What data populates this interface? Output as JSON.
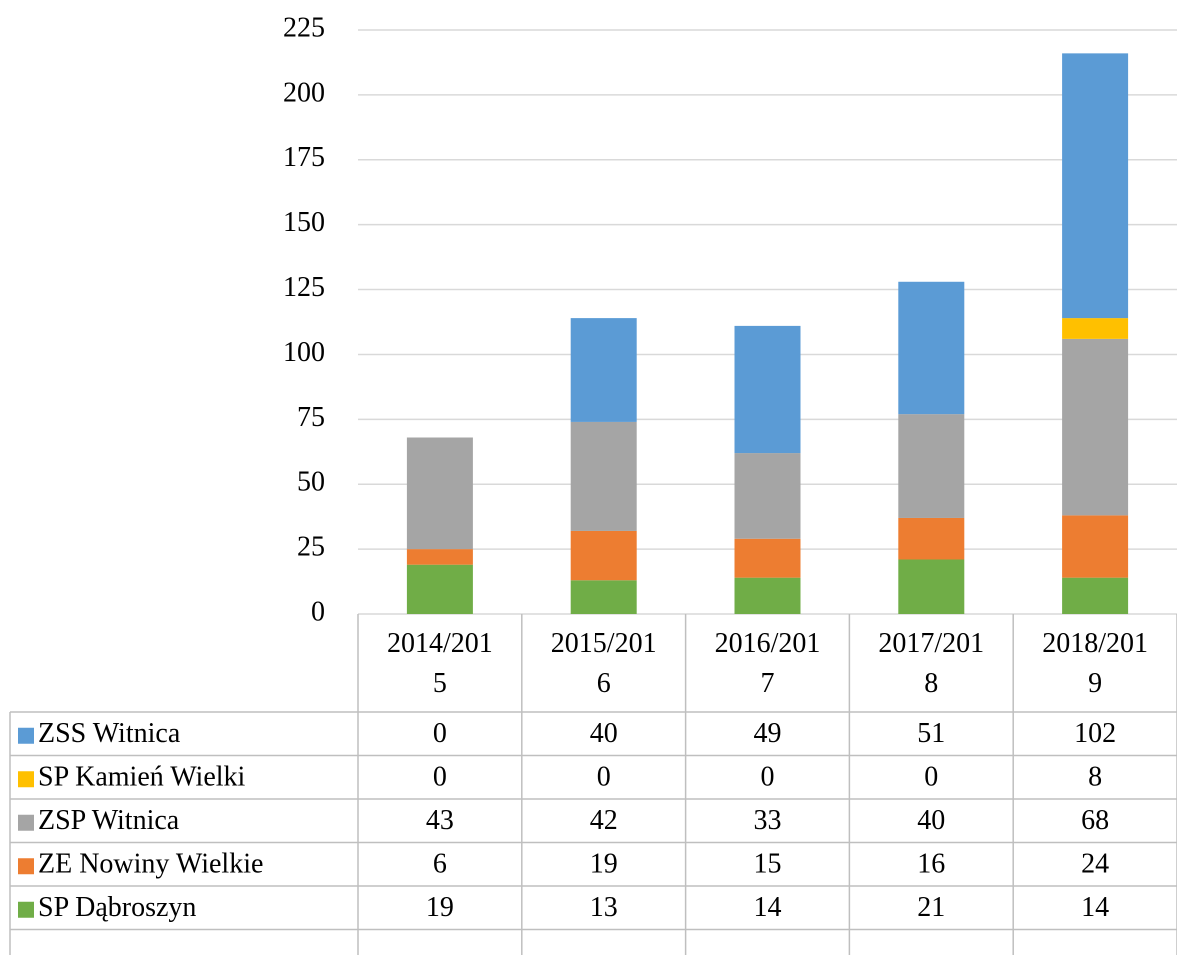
{
  "chart_data": {
    "type": "stacked-bar",
    "categories": [
      "2014/2015",
      "2015/2016",
      "2016/2017",
      "2017/2018",
      "2018/2019"
    ],
    "series": [
      {
        "name": "ZSS Witnica",
        "color": "#5b9bd5",
        "values": [
          0,
          40,
          49,
          51,
          102
        ]
      },
      {
        "name": "SP Kamień Wielki",
        "color": "#ffc000",
        "values": [
          0,
          0,
          0,
          0,
          8
        ]
      },
      {
        "name": "ZSP Witnica",
        "color": "#a5a5a5",
        "values": [
          43,
          42,
          33,
          40,
          68
        ]
      },
      {
        "name": "ZE Nowiny Wielkie",
        "color": "#ed7d31",
        "values": [
          6,
          19,
          15,
          16,
          24
        ]
      },
      {
        "name": "SP Dąbroszyn",
        "color": "#70ad47",
        "values": [
          19,
          13,
          14,
          21,
          14
        ]
      }
    ],
    "ylim": [
      0,
      225
    ],
    "yticks": [
      0,
      25,
      50,
      75,
      100,
      125,
      150,
      175,
      200,
      225
    ],
    "grid": true,
    "data_table": true
  }
}
